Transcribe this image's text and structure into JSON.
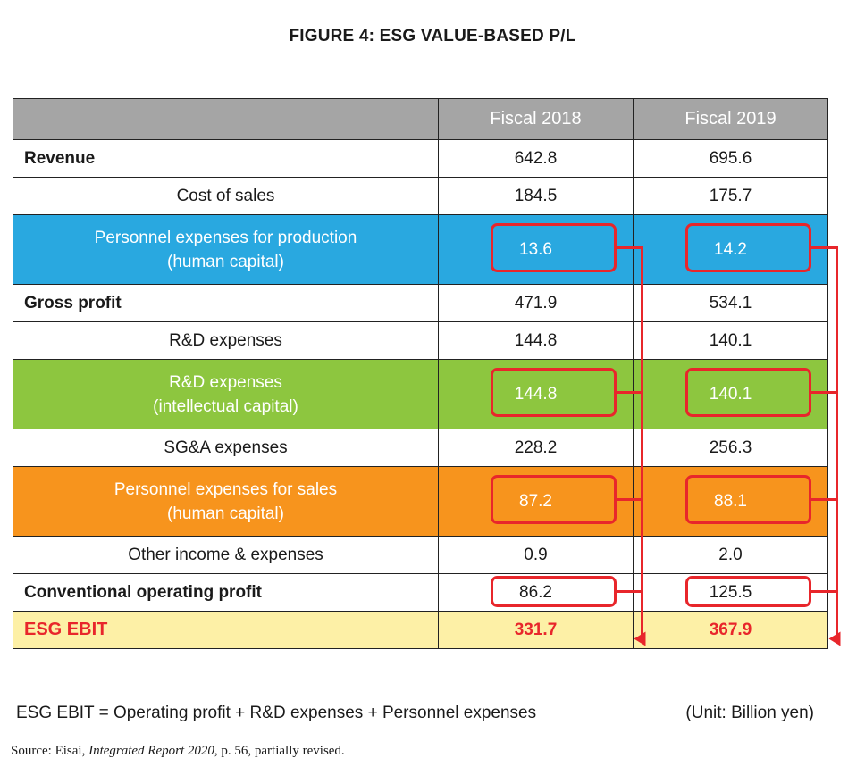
{
  "title": "FIGURE 4: ESG VALUE-BASED P/L",
  "chart_data": {
    "type": "table",
    "columns": [
      "",
      "Fiscal 2018",
      "Fiscal 2019"
    ],
    "rows": [
      {
        "label": "Revenue",
        "label_lines": [
          "Revenue"
        ],
        "style": "bold",
        "fy2018": "642.8",
        "fy2019": "695.6"
      },
      {
        "label": "Cost of sales",
        "label_lines": [
          "Cost of sales"
        ],
        "style": "indent",
        "fy2018": "184.5",
        "fy2019": "175.7"
      },
      {
        "label": "Personnel expenses for production (human capital)",
        "label_lines": [
          "Personnel expenses for production",
          "(human capital)"
        ],
        "style": "blue",
        "fy2018": "13.6",
        "fy2019": "14.2",
        "highlighted": true
      },
      {
        "label": "Gross profit",
        "label_lines": [
          "Gross profit"
        ],
        "style": "bold",
        "fy2018": "471.9",
        "fy2019": "534.1"
      },
      {
        "label": "R&D expenses",
        "label_lines": [
          "R&D expenses"
        ],
        "style": "indent",
        "fy2018": "144.8",
        "fy2019": "140.1"
      },
      {
        "label": "R&D expenses (intellectual capital)",
        "label_lines": [
          "R&D expenses",
          "(intellectual capital)"
        ],
        "style": "green",
        "fy2018": "144.8",
        "fy2019": "140.1",
        "highlighted": true
      },
      {
        "label": "SG&A expenses",
        "label_lines": [
          "SG&A expenses"
        ],
        "style": "indent",
        "fy2018": "228.2",
        "fy2019": "256.3"
      },
      {
        "label": "Personnel expenses for sales (human capital)",
        "label_lines": [
          "Personnel expenses for sales",
          "(human capital)"
        ],
        "style": "orange",
        "fy2018": "87.2",
        "fy2019": "88.1",
        "highlighted": true
      },
      {
        "label": "Other income & expenses",
        "label_lines": [
          "Other income & expenses"
        ],
        "style": "indent",
        "fy2018": "0.9",
        "fy2019": "2.0"
      },
      {
        "label": "Conventional operating profit",
        "label_lines": [
          "Conventional operating profit"
        ],
        "style": "bold",
        "fy2018": "86.2",
        "fy2019": "125.5",
        "highlighted": true
      },
      {
        "label": "ESG EBIT",
        "label_lines": [
          "ESG EBIT"
        ],
        "style": "esg",
        "fy2018": "331.7",
        "fy2019": "367.9"
      }
    ],
    "unit": "Billion yen"
  },
  "footer": {
    "formula": "ESG EBIT = Operating profit + R&D expenses + Personnel expenses",
    "unit_note": "(Unit: Billion yen)",
    "source_prefix": "Source: Eisai, ",
    "source_title": "Integrated Report 2020",
    "source_suffix": ", p. 56, partially revised."
  },
  "colors": {
    "header_gray": "#a5a5a5",
    "blue": "#29a8e0",
    "green": "#8dc63f",
    "orange": "#f7941d",
    "esg_fill": "#fdf0a6",
    "highlight_red": "#e8262b"
  }
}
